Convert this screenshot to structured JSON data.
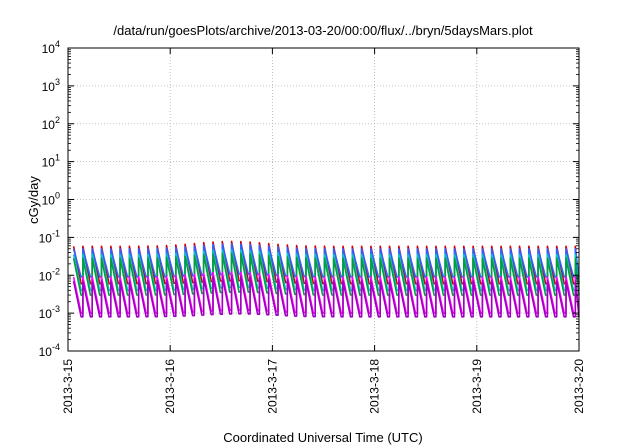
{
  "chart_data": {
    "type": "line",
    "title": "/data/run/goesPlots/archive/2013-03-20/00:00/flux/../bryn/5daysMars.plot",
    "xlabel": "Coordinated Universal Time (UTC)",
    "ylabel": "cGy/day",
    "y_scale": "log",
    "ylim": [
      0.0001,
      10000
    ],
    "xlim": [
      "2013-3-15",
      "2013-3-20"
    ],
    "grid": true,
    "x_ticks": [
      "2013-3-15",
      "2013-3-16",
      "2013-3-17",
      "2013-3-18",
      "2013-3-19",
      "2013-3-20"
    ],
    "y_ticks": [
      {
        "base": "10",
        "exp": "-4",
        "value": 0.0001
      },
      {
        "base": "10",
        "exp": "-3",
        "value": 0.001
      },
      {
        "base": "10",
        "exp": "-2",
        "value": 0.01
      },
      {
        "base": "10",
        "exp": "-1",
        "value": 0.1
      },
      {
        "base": "10",
        "exp": "0",
        "value": 1
      },
      {
        "base": "10",
        "exp": "1",
        "value": 10
      },
      {
        "base": "10",
        "exp": "2",
        "value": 100
      },
      {
        "base": "10",
        "exp": "3",
        "value": 1000
      },
      {
        "base": "10",
        "exp": "4",
        "value": 10000
      }
    ],
    "sawtooth": {
      "period_days": 0.0909,
      "peak_mid_day": 1.6
    },
    "series": [
      {
        "color": "#d00000",
        "peak": 0.058,
        "trough": 0.006
      },
      {
        "color": "#3060ff",
        "peak": 0.05,
        "trough": 0.009
      },
      {
        "color": "#00c8c8",
        "peak": 0.035,
        "trough": 0.004
      },
      {
        "color": "#00a040",
        "peak": 0.028,
        "trough": 0.003
      },
      {
        "color": "#ff00ff",
        "peak": 0.009,
        "trough": 0.001
      },
      {
        "color": "#a000c0",
        "peak": 0.007,
        "trough": 0.0008
      }
    ]
  }
}
